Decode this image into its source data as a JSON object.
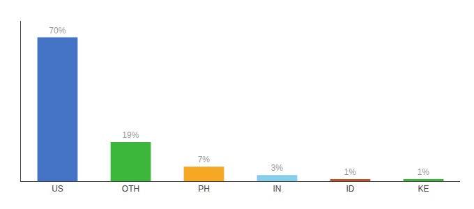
{
  "chart_data": {
    "type": "bar",
    "categories": [
      "US",
      "OTH",
      "PH",
      "IN",
      "ID",
      "KE"
    ],
    "values": [
      70,
      19,
      7,
      3,
      1,
      1
    ],
    "value_labels": [
      "70%",
      "19%",
      "7%",
      "3%",
      "1%",
      "1%"
    ],
    "colors": [
      "#4472c4",
      "#3cb73c",
      "#f5a623",
      "#87ceeb",
      "#c0522a",
      "#3cb73c"
    ],
    "ylim": [
      0,
      78
    ],
    "data_labels": true,
    "tick_labels": "x",
    "grid": false
  }
}
